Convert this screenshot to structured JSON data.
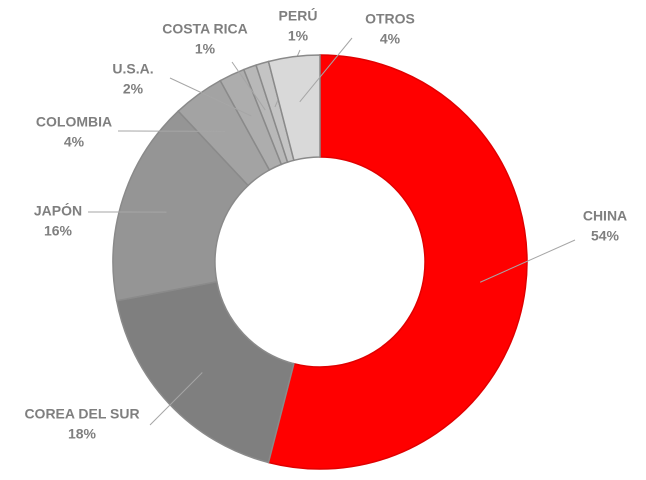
{
  "chart_data": {
    "type": "donut",
    "categories": [
      "CHINA",
      "COREA DEL SUR",
      "JAPÓN",
      "COLOMBIA",
      "U.S.A.",
      "COSTA RICA",
      "PERÚ",
      "OTROS"
    ],
    "values": [
      54,
      18,
      16,
      4,
      2,
      1,
      1,
      4
    ],
    "value_labels": [
      "54%",
      "18%",
      "16%",
      "4%",
      "2%",
      "1%",
      "1%",
      "4%"
    ],
    "colors": [
      "#ff0000",
      "#7f7f7f",
      "#959595",
      "#a3a3a3",
      "#adadad",
      "#b8b8b8",
      "#c4c4c4",
      "#d9d9d9"
    ]
  }
}
